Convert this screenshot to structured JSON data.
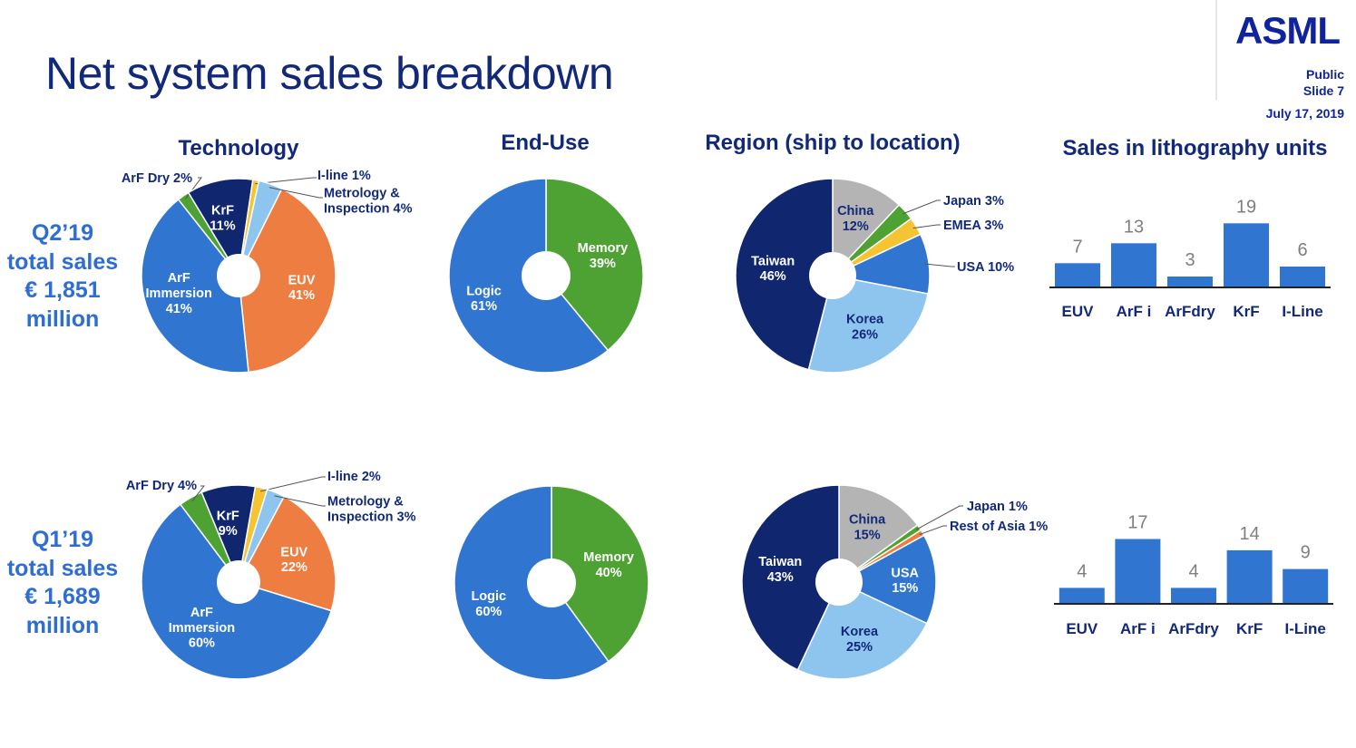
{
  "header": {
    "title": "Net system sales breakdown",
    "logo": "ASML",
    "classification": "Public",
    "slide": "Slide 7",
    "date": "July 17, 2019"
  },
  "sections": {
    "technology": "Technology",
    "end_use": "End-Use",
    "region": "Region (ship to location)",
    "units": "Sales in lithography units"
  },
  "rows": {
    "q2": [
      "Q2’19",
      "total sales",
      "€ 1,851",
      "million"
    ],
    "q1": [
      "Q1’19",
      "total sales",
      "€ 1,689",
      "million"
    ]
  },
  "colors": {
    "navy": "#10266e",
    "blue": "#3076d0",
    "light_blue": "#8ec5ee",
    "orange": "#ed7d40",
    "green": "#4ea233",
    "yellow": "#f4c433",
    "grey": "#b4b4b4",
    "text_dark": "#12297a"
  },
  "chart_data": [
    {
      "id": "q2-technology",
      "type": "pie",
      "slices": [
        {
          "label": "EUV",
          "value": 41,
          "text": "EUV\n41%",
          "color": "#ed7d40"
        },
        {
          "label": "ArF Immersion",
          "value": 41,
          "text": "ArF\nImmersion\n41%",
          "color": "#3076d0"
        },
        {
          "label": "ArF Dry",
          "value": 2,
          "text": "ArF Dry 2%",
          "color": "#4ea233"
        },
        {
          "label": "KrF",
          "value": 11,
          "text": "KrF\n11%",
          "color": "#10266e"
        },
        {
          "label": "I-line",
          "value": 1,
          "text": "I-line 1%",
          "color": "#f4c433"
        },
        {
          "label": "Metrology & Inspection",
          "value": 4,
          "text": "Metrology &\nInspection 4%",
          "color": "#8ec5ee"
        }
      ]
    },
    {
      "id": "q2-enduse",
      "type": "pie",
      "slices": [
        {
          "label": "Memory",
          "value": 39,
          "text": "Memory\n39%",
          "color": "#4ea233"
        },
        {
          "label": "Logic",
          "value": 61,
          "text": "Logic\n61%",
          "color": "#3076d0"
        }
      ]
    },
    {
      "id": "q2-region",
      "type": "pie",
      "slices": [
        {
          "label": "China",
          "value": 12,
          "text": "China\n12%",
          "color": "#b4b4b4"
        },
        {
          "label": "Japan",
          "value": 3,
          "text": "Japan 3%",
          "color": "#4ea233"
        },
        {
          "label": "EMEA",
          "value": 3,
          "text": "EMEA 3%",
          "color": "#f4c433"
        },
        {
          "label": "USA",
          "value": 10,
          "text": "USA 10%",
          "color": "#3076d0"
        },
        {
          "label": "Korea",
          "value": 26,
          "text": "Korea\n26%",
          "color": "#8ec5ee"
        },
        {
          "label": "Taiwan",
          "value": 46,
          "text": "Taiwan\n46%",
          "color": "#10266e"
        }
      ]
    },
    {
      "id": "q2-units",
      "type": "bar",
      "categories": [
        "EUV",
        "ArF i",
        "ArFdry",
        "KrF",
        "I-Line"
      ],
      "values": [
        7,
        13,
        3,
        19,
        6
      ]
    },
    {
      "id": "q1-technology",
      "type": "pie",
      "slices": [
        {
          "label": "EUV",
          "value": 22,
          "text": "EUV\n22%",
          "color": "#ed7d40"
        },
        {
          "label": "ArF Immersion",
          "value": 60,
          "text": "ArF\nImmersion\n60%",
          "color": "#3076d0"
        },
        {
          "label": "ArF Dry",
          "value": 4,
          "text": "ArF Dry 4%",
          "color": "#4ea233"
        },
        {
          "label": "KrF",
          "value": 9,
          "text": "KrF\n9%",
          "color": "#10266e"
        },
        {
          "label": "I-line",
          "value": 2,
          "text": "I-line 2%",
          "color": "#f4c433"
        },
        {
          "label": "Metrology & Inspection",
          "value": 3,
          "text": "Metrology &\nInspection 3%",
          "color": "#8ec5ee"
        }
      ]
    },
    {
      "id": "q1-enduse",
      "type": "pie",
      "slices": [
        {
          "label": "Memory",
          "value": 40,
          "text": "Memory\n40%",
          "color": "#4ea233"
        },
        {
          "label": "Logic",
          "value": 60,
          "text": "Logic\n60%",
          "color": "#3076d0"
        }
      ]
    },
    {
      "id": "q1-region",
      "type": "pie",
      "slices": [
        {
          "label": "China",
          "value": 15,
          "text": "China\n15%",
          "color": "#b4b4b4"
        },
        {
          "label": "Japan",
          "value": 1,
          "text": "Japan 1%",
          "color": "#4ea233"
        },
        {
          "label": "Rest of Asia",
          "value": 1,
          "text": "Rest of Asia 1%",
          "color": "#ed7d40"
        },
        {
          "label": "USA",
          "value": 15,
          "text": "USA\n15%",
          "color": "#3076d0"
        },
        {
          "label": "Korea",
          "value": 25,
          "text": "Korea\n25%",
          "color": "#8ec5ee"
        },
        {
          "label": "Taiwan",
          "value": 43,
          "text": "Taiwan\n43%",
          "color": "#10266e"
        }
      ]
    },
    {
      "id": "q1-units",
      "type": "bar",
      "categories": [
        "EUV",
        "ArF i",
        "ArFdry",
        "KrF",
        "I-Line"
      ],
      "values": [
        4,
        17,
        4,
        14,
        9
      ]
    }
  ]
}
